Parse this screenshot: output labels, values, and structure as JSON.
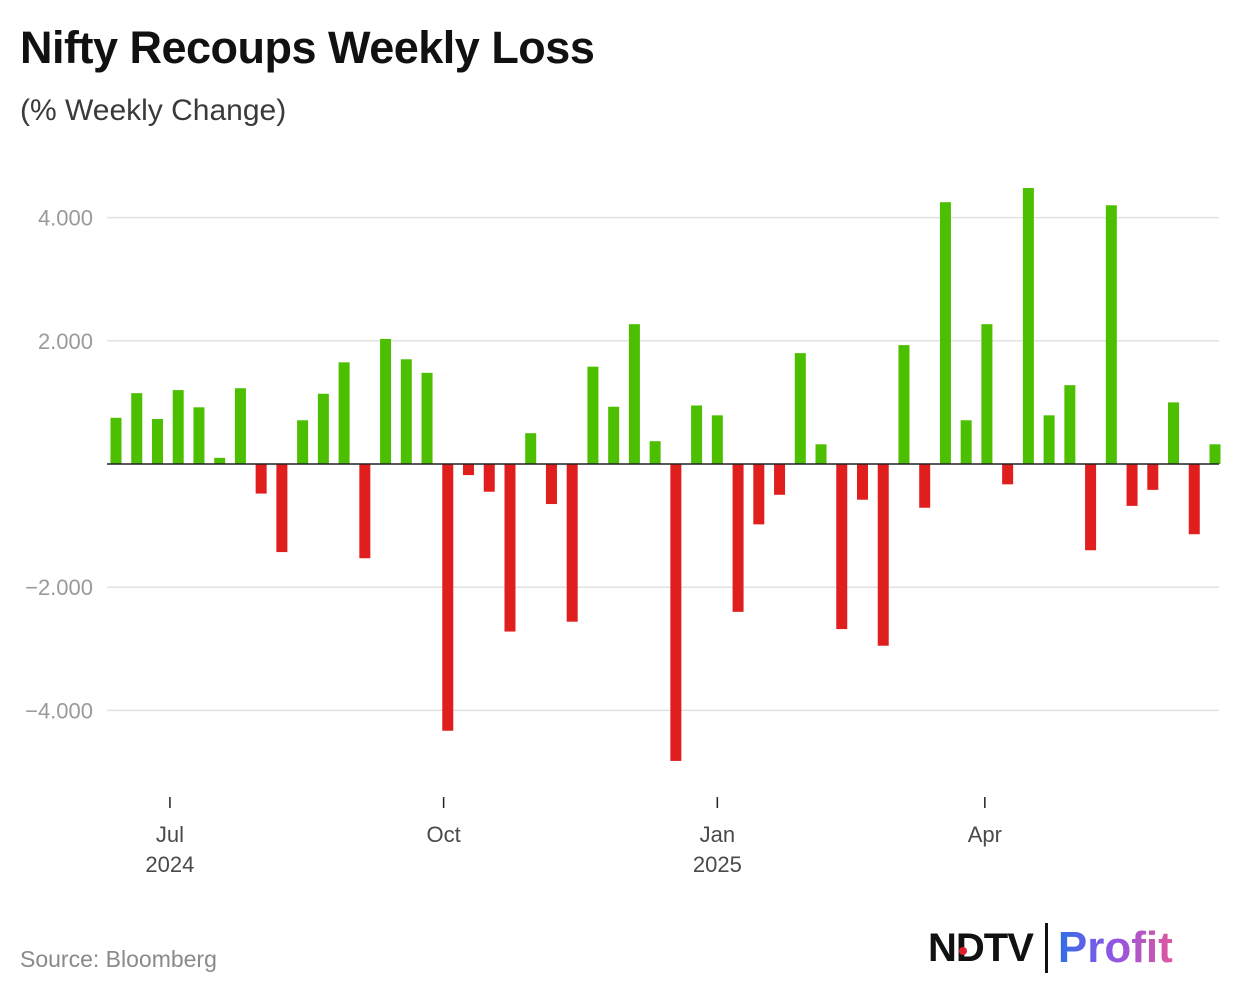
{
  "title": "Nifty Recoups Weekly Loss",
  "subtitle": "(% Weekly Change)",
  "source": "Source: Bloomberg",
  "brand": {
    "ndtv": "NDTV",
    "profit": "Profit"
  },
  "colors": {
    "positive": "#4cbf00",
    "negative": "#e01e1e",
    "grid": "#e2e2e2",
    "axis": "#222222",
    "tick_label": "#9a9a9a"
  },
  "chart_data": {
    "type": "bar",
    "y_ticks": [
      "4.000",
      "2.000",
      "−2.000",
      "−4.000"
    ],
    "y_tick_values": [
      4,
      2,
      -2,
      -4
    ],
    "ylim": [
      -5.2,
      4.8
    ],
    "grid": true,
    "x_ticks": [
      {
        "index": 2.6,
        "label": "Jul",
        "sublabel": "2024"
      },
      {
        "index": 15.8,
        "label": "Oct",
        "sublabel": ""
      },
      {
        "index": 29.0,
        "label": "Jan",
        "sublabel": "2025"
      },
      {
        "index": 41.9,
        "label": "Apr",
        "sublabel": ""
      }
    ],
    "values": [
      0.75,
      1.15,
      0.73,
      1.2,
      0.92,
      0.1,
      1.23,
      -0.48,
      -1.43,
      0.71,
      1.14,
      1.65,
      -1.53,
      2.03,
      1.7,
      1.48,
      -4.33,
      -0.18,
      -0.45,
      -2.72,
      0.5,
      -0.65,
      -2.56,
      1.58,
      0.93,
      2.27,
      0.37,
      -4.82,
      0.95,
      0.79,
      -2.4,
      -0.98,
      -0.5,
      1.8,
      0.32,
      -2.68,
      -0.58,
      -2.95,
      1.93,
      -0.71,
      4.25,
      0.71,
      2.27,
      -0.33,
      4.48,
      0.79,
      1.28,
      -1.4,
      4.2,
      -0.68,
      -0.42,
      1.0,
      -1.14,
      0.32
    ]
  }
}
